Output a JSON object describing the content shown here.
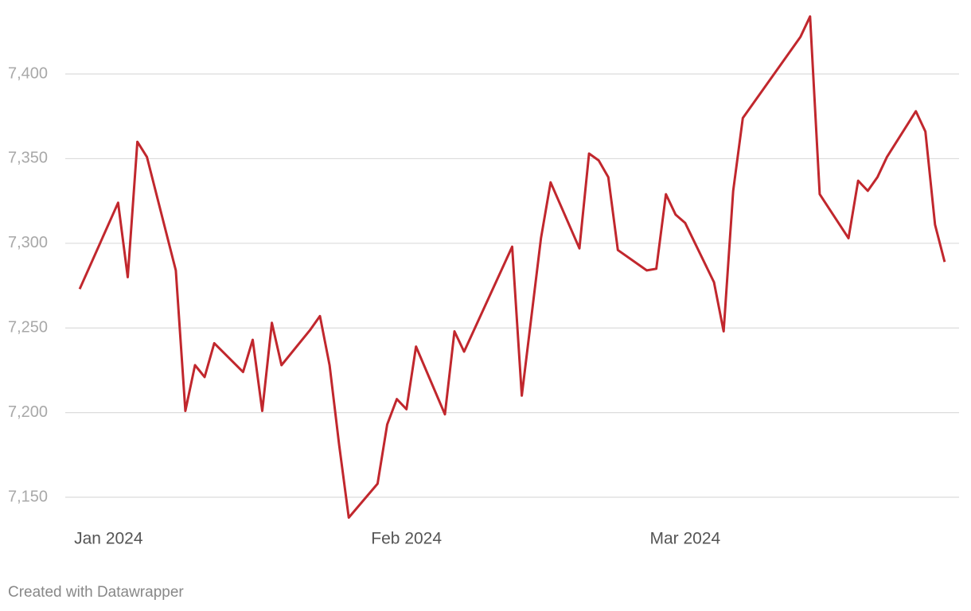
{
  "chart_data": {
    "type": "line",
    "x": [
      0,
      4,
      5,
      6,
      7,
      10,
      11,
      12,
      13,
      14,
      17,
      18,
      19,
      20,
      21,
      24,
      25,
      26,
      27,
      28,
      31,
      32,
      33,
      34,
      35,
      38,
      39,
      40,
      45,
      46,
      48,
      49,
      52,
      53,
      54,
      55,
      56,
      59,
      60,
      61,
      62,
      63,
      66,
      67,
      68,
      69,
      75,
      76,
      77,
      80,
      81,
      82,
      83,
      84,
      87,
      88,
      89,
      90
    ],
    "values": [
      7273,
      7324,
      7280,
      7360,
      7351,
      7284,
      7201,
      7228,
      7221,
      7241,
      7224,
      7243,
      7201,
      7253,
      7228,
      7249,
      7257,
      7228,
      7181,
      7138,
      7158,
      7193,
      7208,
      7202,
      7239,
      7199,
      7248,
      7236,
      7298,
      7210,
      7303,
      7336,
      7297,
      7353,
      7349,
      7339,
      7296,
      7284,
      7285,
      7329,
      7317,
      7312,
      7277,
      7248,
      7331,
      7374,
      7422,
      7434,
      7329,
      7303,
      7337,
      7331,
      7339,
      7351,
      7378,
      7366,
      7311,
      7289
    ],
    "color": "#c1272d",
    "xlim": [
      -1.5,
      91.5
    ],
    "xticks": [
      {
        "value": 3,
        "label": "Jan 2024"
      },
      {
        "value": 34,
        "label": "Feb 2024"
      },
      {
        "value": 63,
        "label": "Mar 2024"
      }
    ],
    "ylim": [
      7133,
      7437
    ],
    "yticks": [
      {
        "value": 7150,
        "label": "7,150"
      },
      {
        "value": 7200,
        "label": "7,200"
      },
      {
        "value": 7250,
        "label": "7,250"
      },
      {
        "value": 7300,
        "label": "7,300"
      },
      {
        "value": 7350,
        "label": "7,350"
      },
      {
        "value": 7400,
        "label": "7,400"
      }
    ],
    "grid": true,
    "footer": "Created with Datawrapper"
  }
}
